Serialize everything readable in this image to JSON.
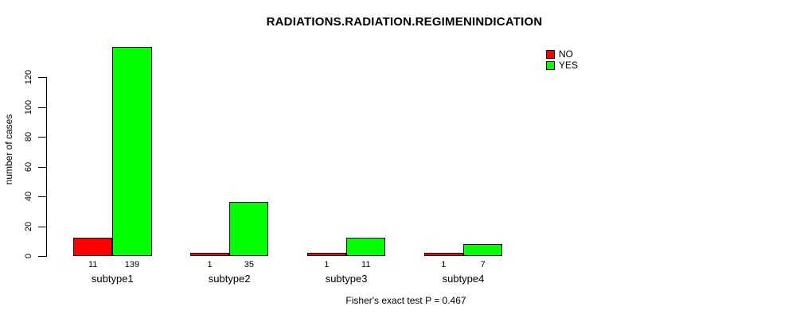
{
  "chart_data": {
    "type": "bar",
    "title": "RADIATIONS.RADIATION.REGIMENINDICATION",
    "ylabel": "number of cases",
    "xlabel": "",
    "categories": [
      "subtype1",
      "subtype2",
      "subtype3",
      "subtype4"
    ],
    "series": [
      {
        "name": "NO",
        "color": "#ff0000",
        "values": [
          11,
          1,
          1,
          1
        ]
      },
      {
        "name": "YES",
        "color": "#00ff00",
        "values": [
          139,
          35,
          11,
          7
        ]
      }
    ],
    "bar_value_labels": [
      [
        "11",
        "139"
      ],
      [
        "1",
        "35"
      ],
      [
        "1",
        "11"
      ],
      [
        "1",
        "7"
      ]
    ],
    "ylim": [
      0,
      139
    ],
    "yticks": [
      0,
      20,
      40,
      60,
      80,
      100,
      120
    ],
    "grid": false,
    "legend": {
      "position": "top-right",
      "items": [
        {
          "label": "NO",
          "color": "#ff0000"
        },
        {
          "label": "YES",
          "color": "#00ff00"
        }
      ]
    },
    "annotation": "Fisher's exact test P = 0.467"
  }
}
